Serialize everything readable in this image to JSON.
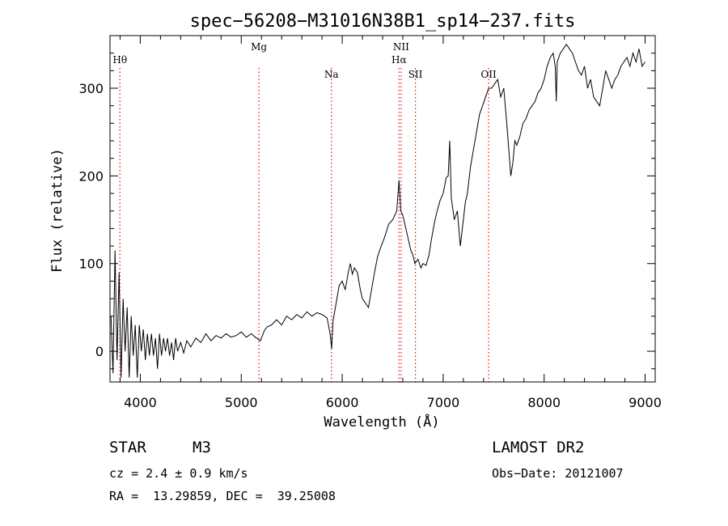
{
  "chart_data": {
    "type": "line",
    "title": "spec−56208−M31016N38B1_sp14−237.fits",
    "xlabel": "Wavelength (Å)",
    "ylabel": "Flux (relative)",
    "xlim": [
      3700,
      9100
    ],
    "ylim": [
      -35,
      360
    ],
    "xticks": [
      4000,
      5000,
      6000,
      7000,
      8000,
      9000
    ],
    "yticks": [
      0,
      100,
      200,
      300
    ],
    "x_tick_labels": [
      "4000",
      "5000",
      "6000",
      "7000",
      "8000",
      "9000"
    ],
    "y_tick_labels": [
      "0",
      "100",
      "200",
      "300"
    ],
    "grid": false,
    "line_color": "#000000",
    "marker_color": "#ff0000",
    "spectral_lines": [
      {
        "name": "Hθ",
        "wavelength": 3798
      },
      {
        "name": "Mg",
        "wavelength": 5175
      },
      {
        "name": "Na",
        "wavelength": 5893
      },
      {
        "name": "NII",
        "wavelength": 6583
      },
      {
        "name": "Hα",
        "wavelength": 6563
      },
      {
        "name": "SII",
        "wavelength": 6725
      },
      {
        "name": "OII",
        "wavelength": 7450
      }
    ],
    "series": [
      {
        "values": [
          [
            3710,
            40
          ],
          [
            3730,
            -25
          ],
          [
            3750,
            115
          ],
          [
            3770,
            -10
          ],
          [
            3790,
            90
          ],
          [
            3810,
            -30
          ],
          [
            3830,
            60
          ],
          [
            3850,
            0
          ],
          [
            3870,
            50
          ],
          [
            3890,
            -30
          ],
          [
            3910,
            40
          ],
          [
            3930,
            -5
          ],
          [
            3950,
            30
          ],
          [
            3970,
            -30
          ],
          [
            3990,
            30
          ],
          [
            4010,
            0
          ],
          [
            4030,
            25
          ],
          [
            4050,
            -10
          ],
          [
            4070,
            20
          ],
          [
            4090,
            -5
          ],
          [
            4110,
            20
          ],
          [
            4130,
            -5
          ],
          [
            4150,
            15
          ],
          [
            4170,
            -20
          ],
          [
            4190,
            20
          ],
          [
            4210,
            -5
          ],
          [
            4230,
            15
          ],
          [
            4250,
            0
          ],
          [
            4270,
            15
          ],
          [
            4290,
            -5
          ],
          [
            4310,
            10
          ],
          [
            4330,
            -10
          ],
          [
            4350,
            15
          ],
          [
            4370,
            0
          ],
          [
            4400,
            10
          ],
          [
            4430,
            -2
          ],
          [
            4460,
            12
          ],
          [
            4500,
            5
          ],
          [
            4550,
            15
          ],
          [
            4600,
            10
          ],
          [
            4650,
            20
          ],
          [
            4700,
            12
          ],
          [
            4750,
            18
          ],
          [
            4800,
            15
          ],
          [
            4850,
            20
          ],
          [
            4900,
            16
          ],
          [
            4950,
            18
          ],
          [
            5000,
            22
          ],
          [
            5050,
            16
          ],
          [
            5100,
            20
          ],
          [
            5150,
            15
          ],
          [
            5190,
            12
          ],
          [
            5230,
            24
          ],
          [
            5260,
            28
          ],
          [
            5300,
            30
          ],
          [
            5350,
            36
          ],
          [
            5400,
            30
          ],
          [
            5450,
            40
          ],
          [
            5500,
            36
          ],
          [
            5550,
            42
          ],
          [
            5600,
            38
          ],
          [
            5650,
            45
          ],
          [
            5700,
            40
          ],
          [
            5750,
            44
          ],
          [
            5800,
            42
          ],
          [
            5850,
            38
          ],
          [
            5880,
            20
          ],
          [
            5895,
            3
          ],
          [
            5910,
            35
          ],
          [
            5940,
            55
          ],
          [
            5970,
            75
          ],
          [
            6000,
            80
          ],
          [
            6030,
            70
          ],
          [
            6060,
            90
          ],
          [
            6080,
            100
          ],
          [
            6100,
            88
          ],
          [
            6120,
            95
          ],
          [
            6150,
            90
          ],
          [
            6180,
            70
          ],
          [
            6200,
            60
          ],
          [
            6230,
            55
          ],
          [
            6260,
            50
          ],
          [
            6290,
            70
          ],
          [
            6320,
            90
          ],
          [
            6350,
            108
          ],
          [
            6380,
            118
          ],
          [
            6420,
            130
          ],
          [
            6460,
            145
          ],
          [
            6500,
            150
          ],
          [
            6540,
            160
          ],
          [
            6563,
            195
          ],
          [
            6580,
            160
          ],
          [
            6600,
            155
          ],
          [
            6640,
            135
          ],
          [
            6680,
            115
          ],
          [
            6700,
            110
          ],
          [
            6720,
            100
          ],
          [
            6750,
            105
          ],
          [
            6780,
            95
          ],
          [
            6800,
            100
          ],
          [
            6830,
            98
          ],
          [
            6860,
            110
          ],
          [
            6880,
            125
          ],
          [
            6910,
            145
          ],
          [
            6940,
            160
          ],
          [
            6970,
            172
          ],
          [
            7000,
            180
          ],
          [
            7030,
            198
          ],
          [
            7050,
            200
          ],
          [
            7065,
            240
          ],
          [
            7080,
            175
          ],
          [
            7110,
            150
          ],
          [
            7140,
            160
          ],
          [
            7170,
            120
          ],
          [
            7190,
            140
          ],
          [
            7220,
            170
          ],
          [
            7240,
            180
          ],
          [
            7270,
            210
          ],
          [
            7300,
            230
          ],
          [
            7330,
            250
          ],
          [
            7360,
            270
          ],
          [
            7390,
            280
          ],
          [
            7420,
            290
          ],
          [
            7450,
            300
          ],
          [
            7480,
            300
          ],
          [
            7510,
            305
          ],
          [
            7540,
            310
          ],
          [
            7570,
            290
          ],
          [
            7600,
            300
          ],
          [
            7630,
            260
          ],
          [
            7650,
            230
          ],
          [
            7670,
            200
          ],
          [
            7690,
            215
          ],
          [
            7710,
            240
          ],
          [
            7730,
            235
          ],
          [
            7760,
            245
          ],
          [
            7790,
            260
          ],
          [
            7820,
            265
          ],
          [
            7850,
            275
          ],
          [
            7880,
            280
          ],
          [
            7910,
            285
          ],
          [
            7940,
            295
          ],
          [
            7970,
            300
          ],
          [
            8000,
            310
          ],
          [
            8030,
            325
          ],
          [
            8060,
            335
          ],
          [
            8090,
            340
          ],
          [
            8110,
            325
          ],
          [
            8120,
            285
          ],
          [
            8130,
            330
          ],
          [
            8160,
            340
          ],
          [
            8190,
            345
          ],
          [
            8220,
            350
          ],
          [
            8250,
            345
          ],
          [
            8280,
            340
          ],
          [
            8310,
            330
          ],
          [
            8340,
            320
          ],
          [
            8370,
            315
          ],
          [
            8400,
            325
          ],
          [
            8430,
            300
          ],
          [
            8460,
            310
          ],
          [
            8490,
            290
          ],
          [
            8520,
            285
          ],
          [
            8550,
            280
          ],
          [
            8580,
            300
          ],
          [
            8610,
            320
          ],
          [
            8640,
            310
          ],
          [
            8670,
            300
          ],
          [
            8700,
            310
          ],
          [
            8730,
            315
          ],
          [
            8760,
            325
          ],
          [
            8790,
            330
          ],
          [
            8820,
            335
          ],
          [
            8850,
            325
          ],
          [
            8880,
            340
          ],
          [
            8910,
            330
          ],
          [
            8940,
            345
          ],
          [
            8970,
            325
          ],
          [
            9000,
            330
          ]
        ]
      }
    ]
  },
  "footer": {
    "object_type": "STAR",
    "subclass": "M3",
    "survey": "LAMOST DR2",
    "cz": "cz = 2.4 ± 0.9 km/s",
    "obs_date": "Obs−Date: 20121007",
    "coords": "RA =  13.29859, DEC =  39.25008"
  }
}
